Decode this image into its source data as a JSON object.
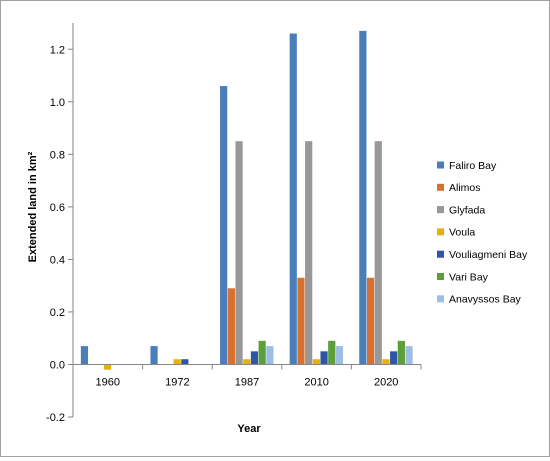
{
  "chart_data": {
    "type": "bar",
    "categories": [
      "1960",
      "1972",
      "1987",
      "2010",
      "2020"
    ],
    "series": [
      {
        "name": "Faliro Bay",
        "color": "#4a7ebb",
        "values": [
          0.07,
          0.07,
          1.06,
          1.26,
          1.27
        ]
      },
      {
        "name": "Alimos",
        "color": "#d8702f",
        "values": [
          0,
          0,
          0.29,
          0.33,
          0.33
        ]
      },
      {
        "name": "Glyfada",
        "color": "#989898",
        "values": [
          0,
          0,
          0.85,
          0.85,
          0.85
        ]
      },
      {
        "name": "Voula",
        "color": "#e8b00f",
        "values": [
          -0.02,
          0.02,
          0.02,
          0.02,
          0.02
        ]
      },
      {
        "name": "Vouliagmeni Bay",
        "color": "#2f56a6",
        "values": [
          0,
          0.02,
          0.05,
          0.05,
          0.05
        ]
      },
      {
        "name": "Vari Bay",
        "color": "#5b9e3a",
        "values": [
          0,
          0,
          0.09,
          0.09,
          0.09
        ]
      },
      {
        "name": "Anavyssos Bay",
        "color": "#9dbde5",
        "values": [
          0,
          0,
          0.07,
          0.07,
          0.07
        ]
      }
    ],
    "ylim": [
      -0.2,
      1.3
    ],
    "yticks": [
      "-0.2",
      "0.0",
      "0.2",
      "0.4",
      "0.6",
      "0.8",
      "1.0",
      "1.2"
    ],
    "xlabel": "Year",
    "ylabel": "Extended land in km²",
    "grid": false,
    "legend_position": "right"
  }
}
